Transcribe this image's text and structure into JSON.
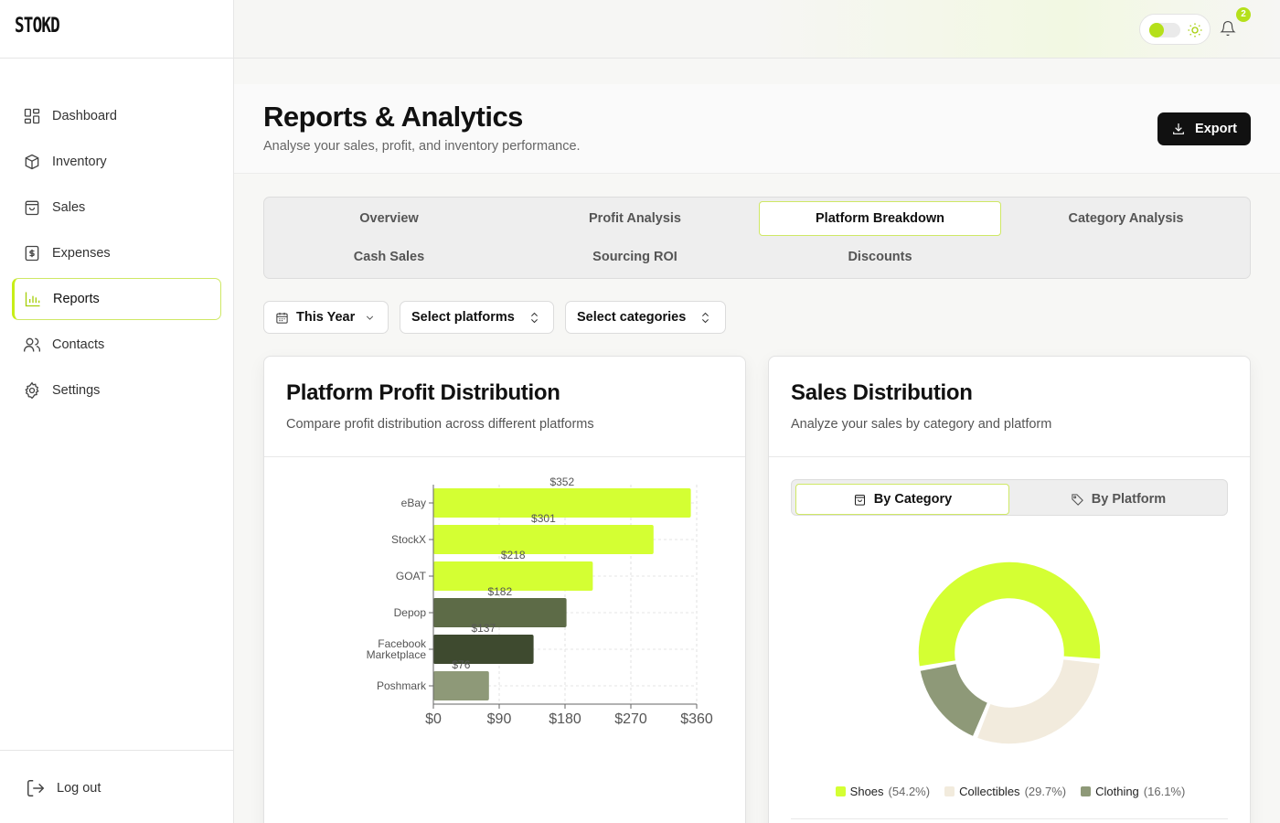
{
  "brand": {
    "name": "STOKD"
  },
  "sidebar": {
    "items": [
      {
        "label": "Dashboard",
        "icon": "dashboard-icon",
        "active": false
      },
      {
        "label": "Inventory",
        "icon": "box-icon",
        "active": false
      },
      {
        "label": "Sales",
        "icon": "shopping-bag-icon",
        "active": false
      },
      {
        "label": "Expenses",
        "icon": "dollar-receipt-icon",
        "active": false
      },
      {
        "label": "Reports",
        "icon": "bar-chart-icon",
        "active": true
      },
      {
        "label": "Contacts",
        "icon": "users-icon",
        "active": false
      },
      {
        "label": "Settings",
        "icon": "gear-icon",
        "active": false
      }
    ],
    "logout_label": "Log out"
  },
  "topbar": {
    "notification_count": "2"
  },
  "header": {
    "title": "Reports & Analytics",
    "subtitle": "Analyse your sales, profit, and inventory performance.",
    "export_label": "Export"
  },
  "tabs": [
    {
      "label": "Overview",
      "active": false
    },
    {
      "label": "Profit Analysis",
      "active": false
    },
    {
      "label": "Platform Breakdown",
      "active": true
    },
    {
      "label": "Category Analysis",
      "active": false
    },
    {
      "label": "Cash Sales",
      "active": false
    },
    {
      "label": "Sourcing ROI",
      "active": false
    },
    {
      "label": "Discounts",
      "active": false
    }
  ],
  "filters": {
    "period": "This Year",
    "platforms": "Select platforms",
    "categories": "Select categories"
  },
  "profit_card": {
    "title": "Platform Profit Distribution",
    "description": "Compare profit distribution across different platforms"
  },
  "sales_card": {
    "title": "Sales Distribution",
    "description": "Analyze your sales by category and platform",
    "by_category_label": "By Category",
    "by_platform_label": "By Platform"
  },
  "colors": {
    "accent": "#d4ff33",
    "brand_green": "#b5e01a",
    "dark_olive": "#5d6b47",
    "darker_olive": "#3e4a2f",
    "sage": "#8e9978",
    "cream": "#f2ebdd"
  },
  "chart_data": [
    {
      "type": "bar",
      "orientation": "horizontal",
      "categories": [
        "eBay",
        "StockX",
        "GOAT",
        "Depop",
        "Facebook Marketplace",
        "Poshmark"
      ],
      "values": [
        352,
        301,
        218,
        182,
        137,
        76
      ],
      "data_labels": [
        "$352",
        "$301",
        "$218",
        "$182",
        "$137",
        "$76"
      ],
      "bar_colors": [
        "#d4ff33",
        "#d4ff33",
        "#d4ff33",
        "#5d6b47",
        "#3e4a2f",
        "#8e9978"
      ],
      "x_ticks": [
        "$0",
        "$90",
        "$180",
        "$270",
        "$360"
      ],
      "xlim": [
        0,
        360
      ],
      "grid": "vertical dashed"
    },
    {
      "type": "pie",
      "variant": "donut",
      "series": [
        {
          "name": "Shoes",
          "value": 54.2,
          "label": "(54.2%)",
          "color": "#d4ff33"
        },
        {
          "name": "Collectibles",
          "value": 29.7,
          "label": "(29.7%)",
          "color": "#f2ebdd"
        },
        {
          "name": "Clothing",
          "value": 16.1,
          "label": "(16.1%)",
          "color": "#8e9978"
        }
      ],
      "legend": "bottom"
    }
  ]
}
